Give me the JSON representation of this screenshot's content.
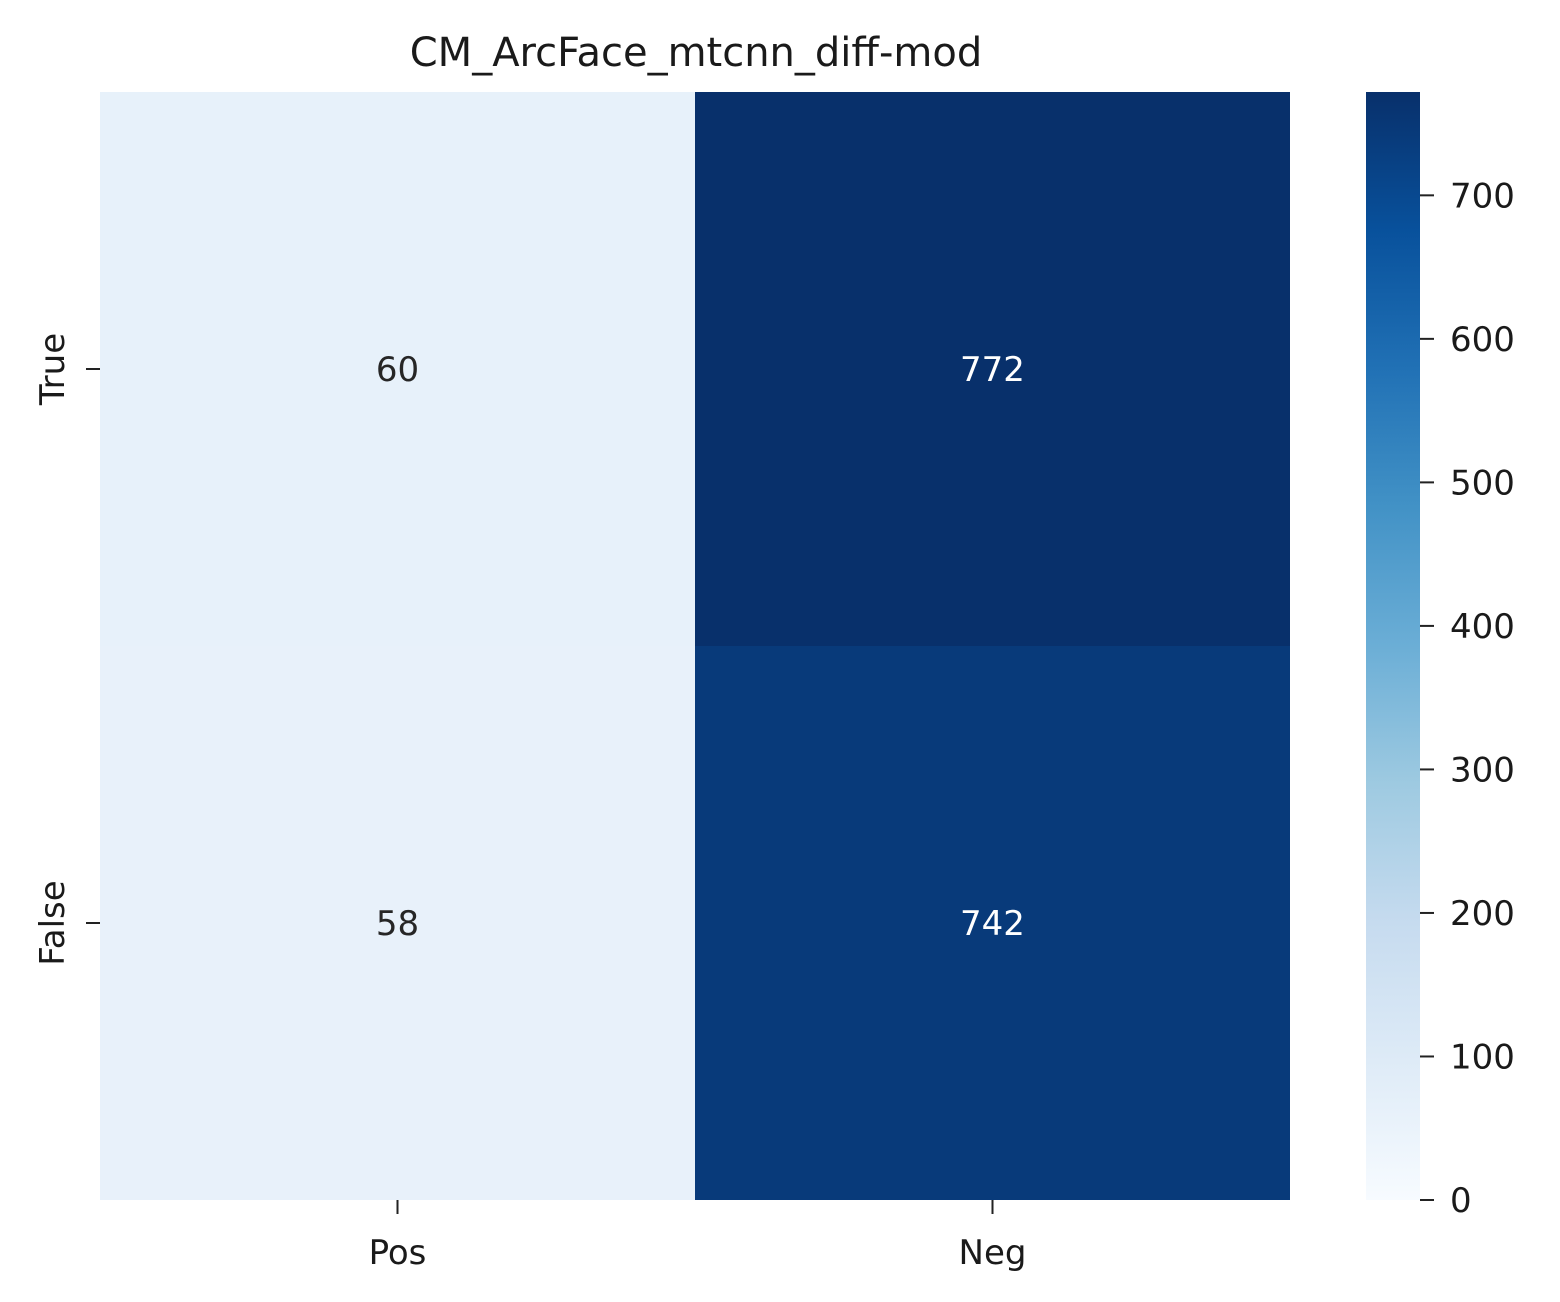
{
  "chart_data": {
    "type": "heatmap",
    "title": "CM_ArcFace_mtcnn_diff-mod",
    "xlabel": "",
    "ylabel": "",
    "x_categories": [
      "Pos",
      "Neg"
    ],
    "y_categories": [
      "True",
      "False"
    ],
    "values": [
      [
        60,
        772
      ],
      [
        58,
        742
      ]
    ],
    "colorbar": {
      "min": 0,
      "max": 772,
      "ticks": [
        0,
        100,
        200,
        300,
        400,
        500,
        600,
        700
      ],
      "tick_labels": [
        "0",
        "100",
        "200",
        "300",
        "400",
        "500",
        "600",
        "700"
      ],
      "colormap": "Blues",
      "stops": [
        "#f7fbff",
        "#deebf7",
        "#c6dbef",
        "#9ecae1",
        "#6baed6",
        "#4292c6",
        "#2171b5",
        "#08519c",
        "#08306b"
      ]
    },
    "grid": false
  }
}
